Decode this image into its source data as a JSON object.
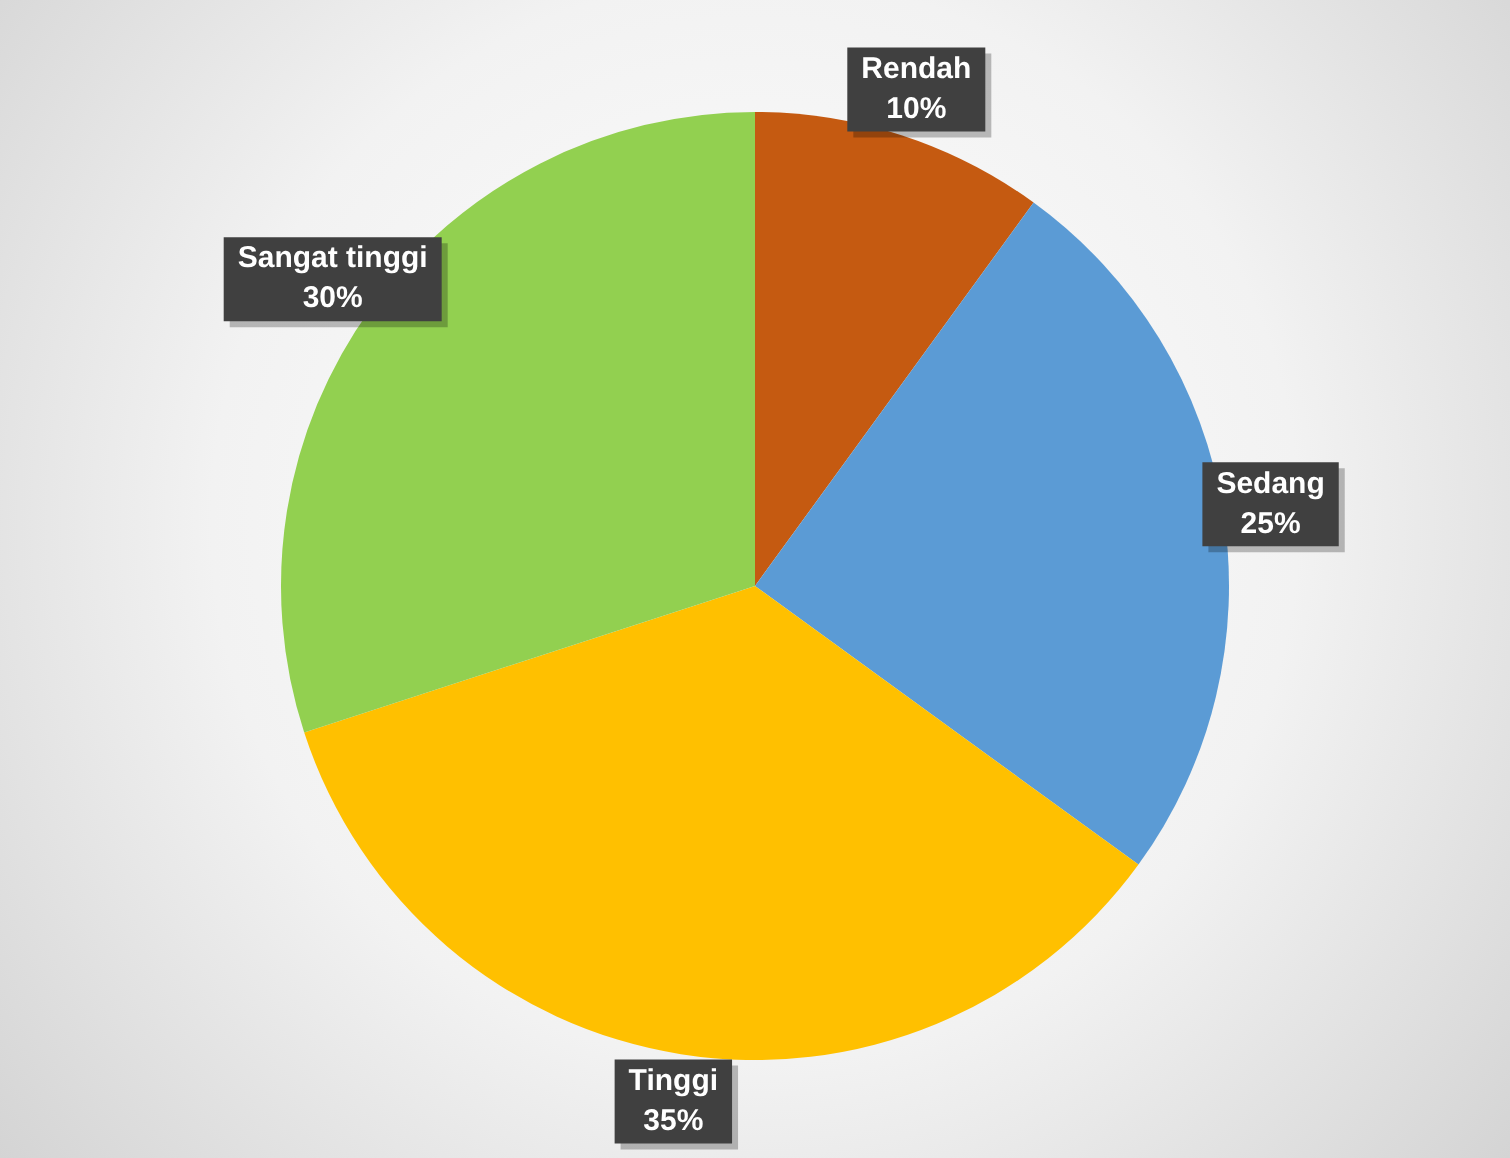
{
  "chart_data": {
    "type": "pie",
    "categories": [
      "Rendah",
      "Sedang",
      "Tinggi",
      "Sangat tinggi"
    ],
    "values": [
      10,
      25,
      35,
      30
    ],
    "colors": [
      "#c55a11",
      "#5b9bd5",
      "#ffc000",
      "#92d050"
    ],
    "value_labels": [
      "10%",
      "25%",
      "35%",
      "30%"
    ],
    "legend": false
  }
}
